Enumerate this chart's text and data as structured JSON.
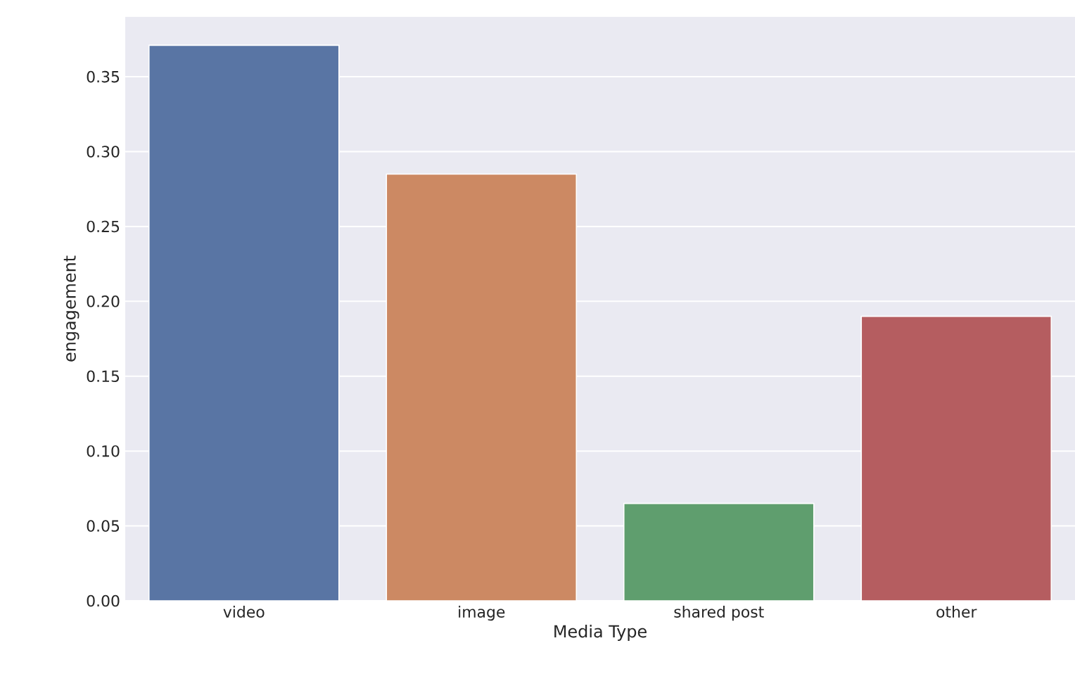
{
  "chart_data": {
    "type": "bar",
    "xlabel": "Media Type",
    "ylabel": "engagement",
    "categories": [
      "video",
      "image",
      "shared post",
      "other"
    ],
    "values": [
      0.371,
      0.285,
      0.065,
      0.19
    ],
    "colors": [
      "#5975a4",
      "#cc8963",
      "#5f9e6e",
      "#b55d60"
    ],
    "ylim": [
      0,
      0.39
    ],
    "yticks": [
      {
        "value": 0,
        "label": "0.00"
      },
      0.05,
      {
        "value": 0.1,
        "label": "0.10"
      },
      0.15,
      {
        "value": 0.2,
        "label": "0.20"
      },
      0.25,
      {
        "value": 0.3,
        "label": "0.30"
      },
      0.35
    ],
    "grid": "y"
  }
}
